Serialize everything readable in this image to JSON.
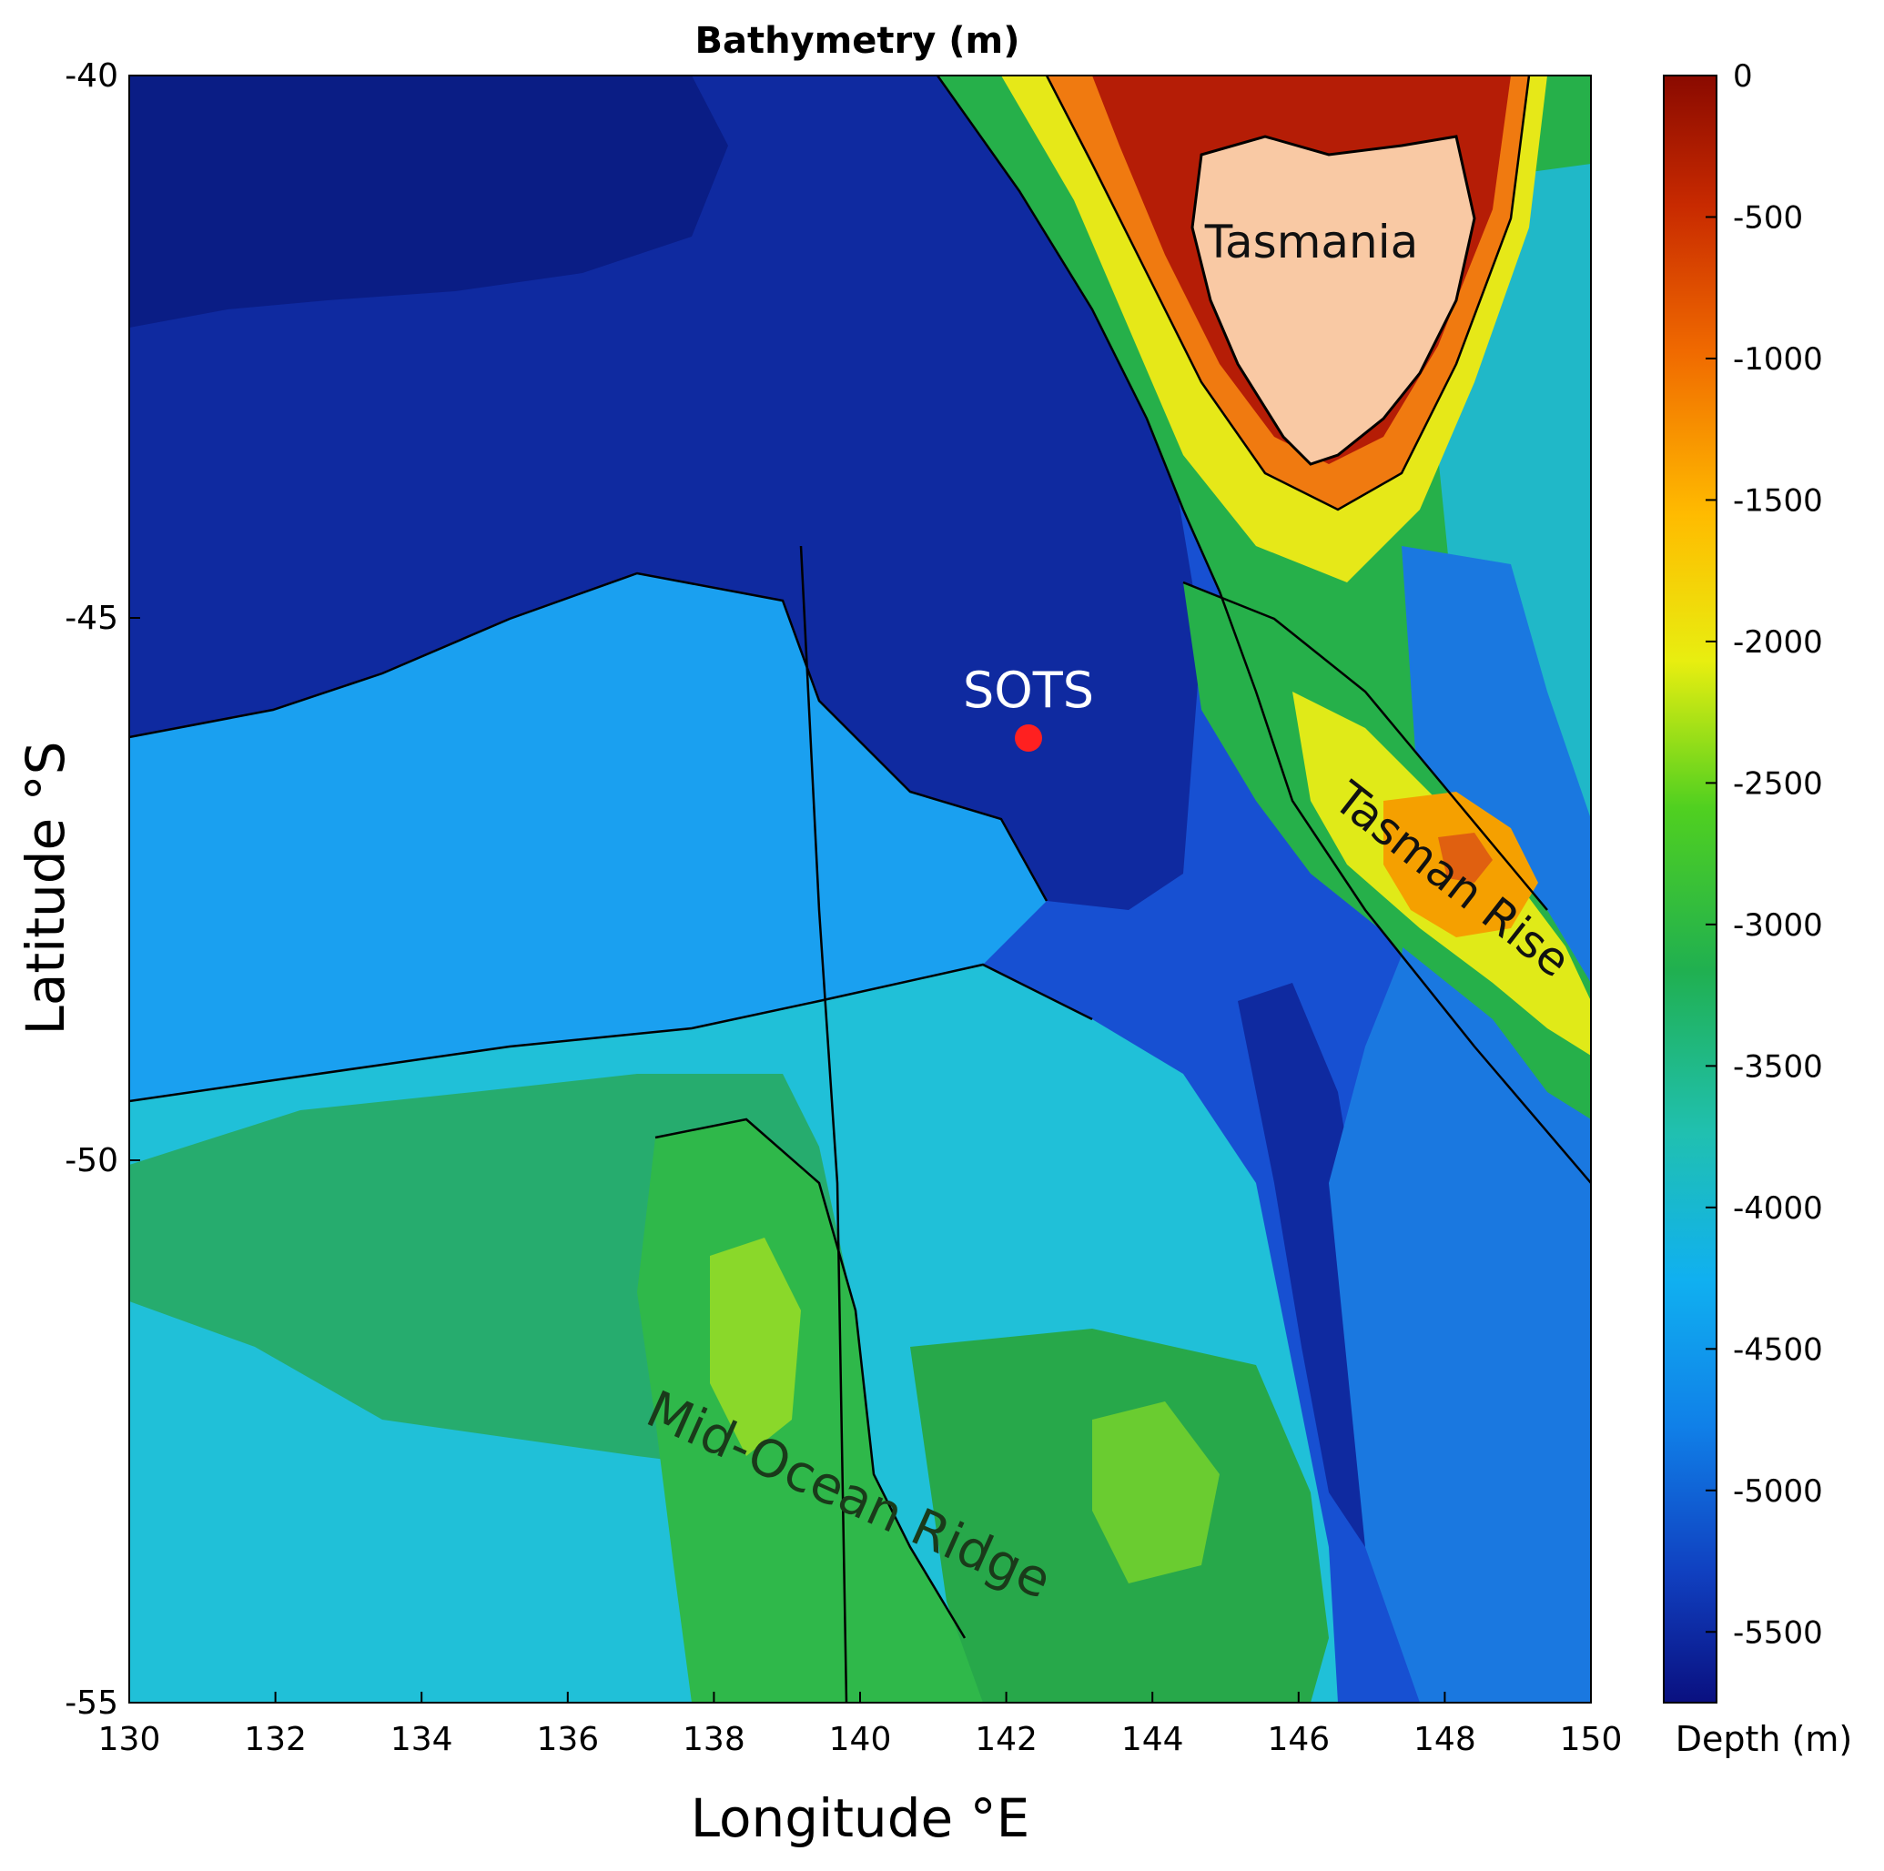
{
  "chart_data": {
    "type": "heatmap",
    "title": "Bathymetry (m)",
    "xlabel": "Longitude °E",
    "ylabel": "Latitude °S",
    "xlim": [
      130,
      150
    ],
    "ylim": [
      -55,
      -40
    ],
    "xticks": [
      "130",
      "132",
      "134",
      "136",
      "138",
      "140",
      "142",
      "144",
      "146",
      "148",
      "150"
    ],
    "yticks": [
      "-40",
      "-45",
      "-50",
      "-55"
    ],
    "colorbar": {
      "label": "Depth (m)",
      "range": [
        -5750,
        0
      ],
      "ticks": [
        "0",
        "-500",
        "-1000",
        "-1500",
        "-2000",
        "-2500",
        "-3000",
        "-3500",
        "-4000",
        "-4500",
        "-5000",
        "-5500"
      ]
    },
    "annotations": [
      {
        "text": "Tasmania",
        "lon": 145.8,
        "lat": -41.5
      },
      {
        "text": "SOTS",
        "lon": 142.3,
        "lat": -45.6
      },
      {
        "text": "Tasman Rise",
        "lon": 147.5,
        "lat": -47.6
      },
      {
        "text": "Mid-Ocean Ridge",
        "lon": 140.1,
        "lat": -52.9
      }
    ],
    "markers": [
      {
        "name": "SOTS",
        "lon": 142.25,
        "lat": -46.1,
        "color": "#ff2020"
      }
    ],
    "colors": {
      "deep": "#0a1a8a",
      "mid": "#2ac0e0",
      "shallow": "#ff9a00",
      "land": "#f9c9a4",
      "coast": "#b51d06"
    }
  }
}
